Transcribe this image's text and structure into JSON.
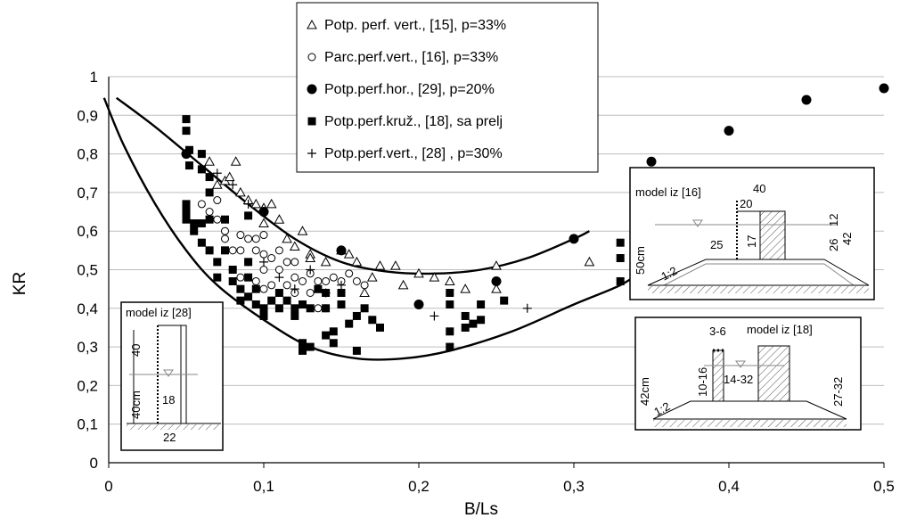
{
  "chart_data": {
    "type": "scatter",
    "xlabel": "B/Ls",
    "ylabel": "KR",
    "xlim": [
      0,
      0.5
    ],
    "ylim": [
      0,
      1
    ],
    "x_ticks": [
      "0",
      "0,1",
      "0,2",
      "0,3",
      "0,4",
      "0,5"
    ],
    "y_ticks": [
      "0",
      "0,1",
      "0,2",
      "0,3",
      "0,4",
      "0,5",
      "0,6",
      "0,7",
      "0,8",
      "0,9",
      "1"
    ],
    "grid": "horizontal",
    "legend_position": "top-center",
    "series": [
      {
        "name": "Potp. perf. vert., [15],   p=33%",
        "marker": "triangle",
        "points": [
          [
            0.065,
            0.78
          ],
          [
            0.07,
            0.72
          ],
          [
            0.075,
            0.73
          ],
          [
            0.078,
            0.74
          ],
          [
            0.082,
            0.78
          ],
          [
            0.085,
            0.7
          ],
          [
            0.09,
            0.68
          ],
          [
            0.095,
            0.67
          ],
          [
            0.1,
            0.62
          ],
          [
            0.1,
            0.66
          ],
          [
            0.105,
            0.67
          ],
          [
            0.11,
            0.63
          ],
          [
            0.115,
            0.58
          ],
          [
            0.12,
            0.56
          ],
          [
            0.125,
            0.6
          ],
          [
            0.13,
            0.54
          ],
          [
            0.13,
            0.53
          ],
          [
            0.14,
            0.52
          ],
          [
            0.15,
            0.55
          ],
          [
            0.155,
            0.54
          ],
          [
            0.16,
            0.52
          ],
          [
            0.17,
            0.48
          ],
          [
            0.175,
            0.51
          ],
          [
            0.185,
            0.51
          ],
          [
            0.2,
            0.49
          ],
          [
            0.21,
            0.48
          ],
          [
            0.22,
            0.47
          ],
          [
            0.23,
            0.45
          ],
          [
            0.25,
            0.51
          ],
          [
            0.25,
            0.45
          ],
          [
            0.31,
            0.52
          ],
          [
            0.135,
            0.45
          ],
          [
            0.165,
            0.44
          ],
          [
            0.19,
            0.46
          ]
        ]
      },
      {
        "name": "Parc.perf.vert., [16],  p=33%",
        "marker": "circle-open",
        "points": [
          [
            0.06,
            0.67
          ],
          [
            0.065,
            0.65
          ],
          [
            0.07,
            0.68
          ],
          [
            0.07,
            0.63
          ],
          [
            0.075,
            0.6
          ],
          [
            0.075,
            0.58
          ],
          [
            0.08,
            0.55
          ],
          [
            0.08,
            0.5
          ],
          [
            0.085,
            0.59
          ],
          [
            0.085,
            0.55
          ],
          [
            0.09,
            0.58
          ],
          [
            0.09,
            0.52
          ],
          [
            0.095,
            0.58
          ],
          [
            0.095,
            0.55
          ],
          [
            0.1,
            0.59
          ],
          [
            0.1,
            0.54
          ],
          [
            0.1,
            0.5
          ],
          [
            0.105,
            0.53
          ],
          [
            0.105,
            0.46
          ],
          [
            0.11,
            0.55
          ],
          [
            0.11,
            0.5
          ],
          [
            0.115,
            0.52
          ],
          [
            0.115,
            0.46
          ],
          [
            0.12,
            0.52
          ],
          [
            0.12,
            0.48
          ],
          [
            0.125,
            0.47
          ],
          [
            0.13,
            0.49
          ],
          [
            0.13,
            0.44
          ],
          [
            0.135,
            0.47
          ],
          [
            0.14,
            0.47
          ],
          [
            0.14,
            0.4
          ],
          [
            0.145,
            0.48
          ],
          [
            0.15,
            0.47
          ],
          [
            0.155,
            0.49
          ],
          [
            0.16,
            0.47
          ],
          [
            0.165,
            0.46
          ],
          [
            0.135,
            0.4
          ],
          [
            0.1,
            0.45
          ],
          [
            0.085,
            0.48
          ],
          [
            0.095,
            0.47
          ],
          [
            0.12,
            0.44
          ]
        ]
      },
      {
        "name": "Potp.perf.hor., [29], p=20%",
        "marker": "circle-filled",
        "points": [
          [
            0.05,
            0.8
          ],
          [
            0.1,
            0.65
          ],
          [
            0.15,
            0.55
          ],
          [
            0.2,
            0.41
          ],
          [
            0.25,
            0.47
          ],
          [
            0.3,
            0.58
          ],
          [
            0.35,
            0.78
          ],
          [
            0.4,
            0.86
          ],
          [
            0.45,
            0.94
          ],
          [
            0.5,
            0.97
          ]
        ]
      },
      {
        "name": "Potp.perf.kruž., [18], sa prelj",
        "marker": "square",
        "points": [
          [
            0.05,
            0.89
          ],
          [
            0.05,
            0.86
          ],
          [
            0.05,
            0.67
          ],
          [
            0.05,
            0.65
          ],
          [
            0.05,
            0.63
          ],
          [
            0.052,
            0.81
          ],
          [
            0.052,
            0.77
          ],
          [
            0.055,
            0.62
          ],
          [
            0.055,
            0.6
          ],
          [
            0.06,
            0.8
          ],
          [
            0.06,
            0.76
          ],
          [
            0.06,
            0.62
          ],
          [
            0.06,
            0.57
          ],
          [
            0.065,
            0.74
          ],
          [
            0.065,
            0.7
          ],
          [
            0.065,
            0.63
          ],
          [
            0.065,
            0.55
          ],
          [
            0.07,
            0.52
          ],
          [
            0.07,
            0.48
          ],
          [
            0.075,
            0.63
          ],
          [
            0.075,
            0.55
          ],
          [
            0.08,
            0.5
          ],
          [
            0.08,
            0.47
          ],
          [
            0.085,
            0.45
          ],
          [
            0.085,
            0.42
          ],
          [
            0.09,
            0.64
          ],
          [
            0.09,
            0.52
          ],
          [
            0.09,
            0.48
          ],
          [
            0.09,
            0.43
          ],
          [
            0.095,
            0.45
          ],
          [
            0.095,
            0.41
          ],
          [
            0.1,
            0.4
          ],
          [
            0.1,
            0.38
          ],
          [
            0.105,
            0.42
          ],
          [
            0.11,
            0.44
          ],
          [
            0.11,
            0.4
          ],
          [
            0.115,
            0.42
          ],
          [
            0.12,
            0.4
          ],
          [
            0.12,
            0.38
          ],
          [
            0.125,
            0.41
          ],
          [
            0.125,
            0.31
          ],
          [
            0.125,
            0.29
          ],
          [
            0.13,
            0.3
          ],
          [
            0.13,
            0.4
          ],
          [
            0.135,
            0.45
          ],
          [
            0.14,
            0.4
          ],
          [
            0.14,
            0.44
          ],
          [
            0.145,
            0.34
          ],
          [
            0.145,
            0.31
          ],
          [
            0.15,
            0.44
          ],
          [
            0.15,
            0.41
          ],
          [
            0.155,
            0.36
          ],
          [
            0.16,
            0.38
          ],
          [
            0.165,
            0.4
          ],
          [
            0.17,
            0.37
          ],
          [
            0.175,
            0.35
          ],
          [
            0.14,
            0.33
          ],
          [
            0.16,
            0.29
          ],
          [
            0.22,
            0.44
          ],
          [
            0.22,
            0.41
          ],
          [
            0.22,
            0.34
          ],
          [
            0.22,
            0.3
          ],
          [
            0.23,
            0.38
          ],
          [
            0.23,
            0.35
          ],
          [
            0.235,
            0.36
          ],
          [
            0.24,
            0.41
          ],
          [
            0.24,
            0.37
          ],
          [
            0.255,
            0.42
          ],
          [
            0.33,
            0.57
          ],
          [
            0.33,
            0.53
          ],
          [
            0.33,
            0.47
          ]
        ]
      },
      {
        "name": "Potp.perf.vert., [28] , p=30%",
        "marker": "plus",
        "points": [
          [
            0.07,
            0.75
          ],
          [
            0.08,
            0.72
          ],
          [
            0.09,
            0.67
          ],
          [
            0.1,
            0.52
          ],
          [
            0.11,
            0.48
          ],
          [
            0.12,
            0.45
          ],
          [
            0.13,
            0.5
          ],
          [
            0.14,
            0.44
          ],
          [
            0.15,
            0.46
          ],
          [
            0.2,
            0.41
          ],
          [
            0.21,
            0.38
          ],
          [
            0.27,
            0.4
          ]
        ]
      }
    ],
    "curves": [
      {
        "name": "",
        "points": [
          [
            0.005,
            0.945
          ],
          [
            0.03,
            0.87
          ],
          [
            0.06,
            0.77
          ],
          [
            0.09,
            0.67
          ],
          [
            0.12,
            0.58
          ],
          [
            0.15,
            0.52
          ],
          [
            0.18,
            0.495
          ],
          [
            0.21,
            0.49
          ],
          [
            0.24,
            0.5
          ],
          [
            0.27,
            0.53
          ],
          [
            0.3,
            0.58
          ],
          [
            0.31,
            0.6
          ]
        ]
      },
      {
        "name": "",
        "points": [
          [
            -0.003,
            0.945
          ],
          [
            0.01,
            0.82
          ],
          [
            0.03,
            0.67
          ],
          [
            0.05,
            0.55
          ],
          [
            0.07,
            0.46
          ],
          [
            0.1,
            0.37
          ],
          [
            0.13,
            0.3
          ],
          [
            0.16,
            0.27
          ],
          [
            0.19,
            0.27
          ],
          [
            0.22,
            0.29
          ],
          [
            0.26,
            0.34
          ],
          [
            0.3,
            0.41
          ],
          [
            0.33,
            0.46
          ],
          [
            0.345,
            0.5
          ]
        ]
      }
    ]
  },
  "insets": {
    "model_28": {
      "title": "model iz [28]",
      "dims": [
        "40",
        "40cm",
        "18",
        "22"
      ]
    },
    "model_16": {
      "title": "model iz [16]",
      "dims": [
        "40",
        "20",
        "25",
        "17",
        "26",
        "12",
        "42",
        "50cm",
        "1:2"
      ]
    },
    "model_18": {
      "title": "model iz [18]",
      "dims": [
        "3-6",
        "10-16",
        "14-32",
        "42cm",
        "1:2",
        "27-32"
      ]
    }
  }
}
